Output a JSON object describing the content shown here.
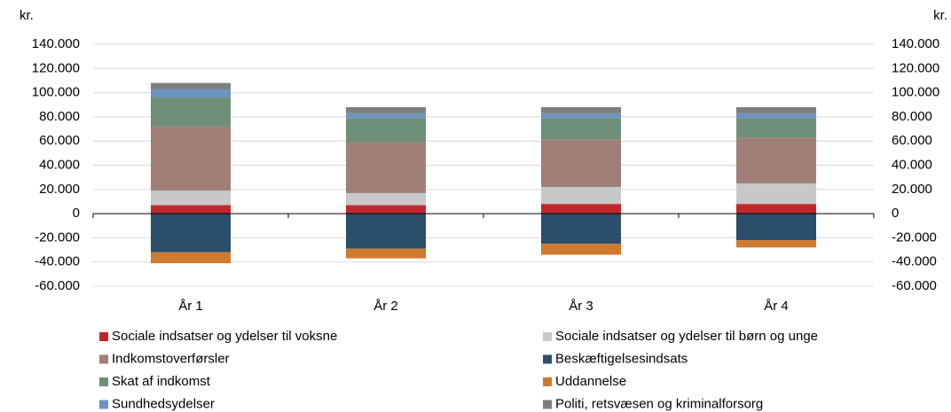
{
  "chart_data": {
    "type": "stacked_bar",
    "ylabel": "kr.",
    "y2label": "kr.",
    "categories": [
      "År 1",
      "År 2",
      "År 3",
      "År 4"
    ],
    "series": [
      {
        "name": "Sociale indsatser og ydelser til voksne",
        "color": "#c0282d",
        "values": [
          7000,
          7000,
          8000,
          8000
        ]
      },
      {
        "name": "Sociale indsatser og ydelser til børn og unge",
        "color": "#c8c8c8",
        "values": [
          12000,
          10000,
          14000,
          17000
        ]
      },
      {
        "name": "Indkomstoverførsler",
        "color": "#a07f78",
        "values": [
          53000,
          42000,
          39000,
          38000
        ]
      },
      {
        "name": "Beskæftigelsesindsats",
        "color": "#2b4e6b",
        "values": [
          -32000,
          -29000,
          -25000,
          -22000
        ]
      },
      {
        "name": "Skat af indkomst",
        "color": "#6f8f78",
        "values": [
          24000,
          20000,
          18000,
          16000
        ]
      },
      {
        "name": "Uddannelse",
        "color": "#d07a30",
        "values": [
          -9000,
          -8000,
          -9000,
          -6000
        ]
      },
      {
        "name": "Sundhedsydelser",
        "color": "#6e93bf",
        "values": [
          7000,
          4000,
          4000,
          4000
        ]
      },
      {
        "name": "Politi, retsvæsen og kriminalforsorg",
        "color": "#7f7f7f",
        "values": [
          5000,
          5000,
          5000,
          5000
        ]
      }
    ],
    "ylim": [
      -60000,
      140000
    ],
    "yticks": [
      {
        "value": -60000,
        "label": "-60.000"
      },
      {
        "value": -40000,
        "label": "-40.000"
      },
      {
        "value": -20000,
        "label": "-20.000"
      },
      0,
      {
        "value": 20000,
        "label": "20.000"
      },
      {
        "value": 40000,
        "label": "40.000"
      },
      {
        "value": 60000,
        "label": "60.000"
      },
      {
        "value": 80000,
        "label": "80.000"
      },
      {
        "value": 100000,
        "label": "100.000"
      },
      {
        "value": 120000,
        "label": "120.000"
      },
      {
        "value": 140000,
        "label": "140.000"
      }
    ],
    "y2lim": [
      -60000,
      140000
    ],
    "y2ticks": [
      {
        "value": -60000,
        "label": "-60.000"
      },
      {
        "value": -40000,
        "label": "-40.000"
      },
      {
        "value": -20000,
        "label": "-20.000"
      },
      0,
      {
        "value": 20000,
        "label": "20.000"
      },
      {
        "value": 40000,
        "label": "40.000"
      },
      {
        "value": 60000,
        "label": "60.000"
      },
      {
        "value": 80000,
        "label": "80.000"
      },
      {
        "value": 100000,
        "label": "100.000"
      },
      {
        "value": 120000,
        "label": "120.000"
      },
      {
        "value": 140000,
        "label": "140.000"
      }
    ],
    "grid": true
  }
}
